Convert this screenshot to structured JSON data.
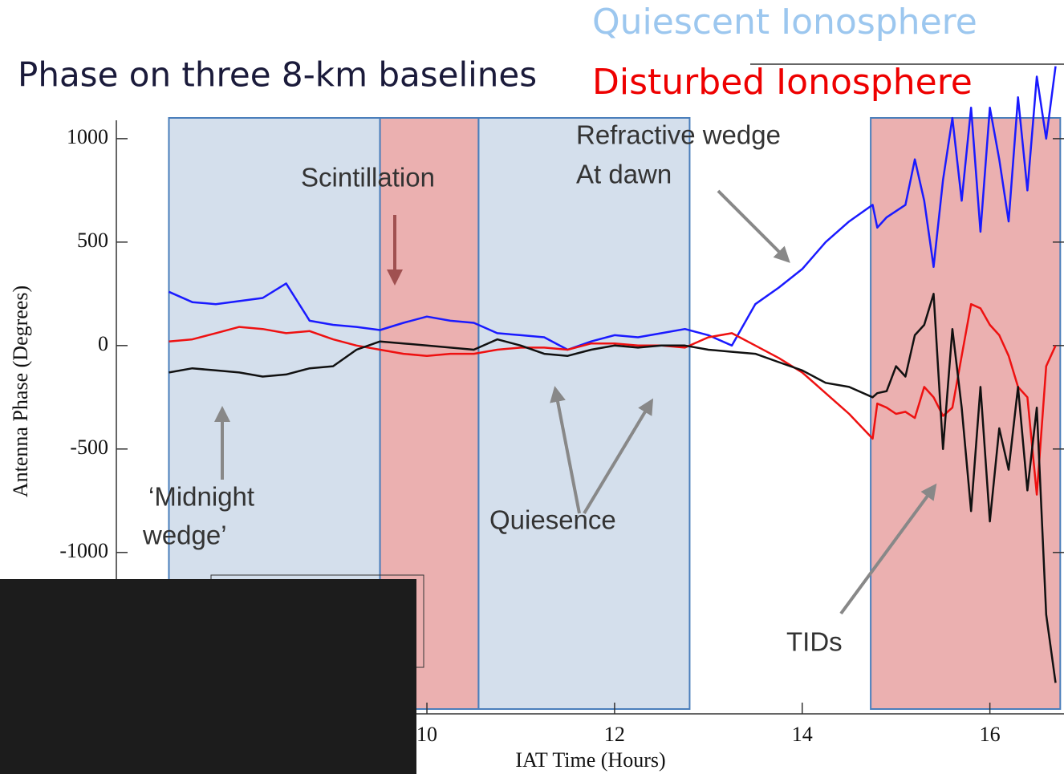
{
  "title": "Phase on three 8-km baselines",
  "chart_data": {
    "type": "line",
    "x_label": "IAT Time (Hours)",
    "y_label": "Antenna Phase (Degrees)",
    "xlim": [
      6.69,
      16.79
    ],
    "ylim": [
      -1780,
      1360
    ],
    "xticks": [
      10,
      12,
      14,
      16
    ],
    "yticks": [
      1000,
      500,
      0,
      -500,
      -1000
    ],
    "x": [
      7.25,
      7.5,
      7.75,
      8.0,
      8.25,
      8.5,
      8.75,
      9.0,
      9.25,
      9.5,
      9.75,
      10.0,
      10.25,
      10.5,
      10.75,
      11.0,
      11.25,
      11.5,
      11.75,
      12.0,
      12.25,
      12.5,
      12.75,
      13.0,
      13.25,
      13.5,
      13.75,
      14.0,
      14.25,
      14.5,
      14.75,
      14.8,
      14.9,
      15.0,
      15.1,
      15.2,
      15.3,
      15.4,
      15.5,
      15.6,
      15.7,
      15.8,
      15.9,
      16.0,
      16.1,
      16.2,
      16.3,
      16.4,
      16.5,
      16.6,
      16.7
    ],
    "series": [
      {
        "color": "#1a1aff",
        "values": [
          260,
          210,
          200,
          215,
          230,
          300,
          120,
          100,
          90,
          75,
          110,
          140,
          120,
          110,
          60,
          50,
          40,
          -20,
          20,
          50,
          40,
          60,
          80,
          50,
          0,
          200,
          280,
          370,
          500,
          600,
          680,
          570,
          620,
          650,
          680,
          900,
          700,
          380,
          800,
          1100,
          700,
          1150,
          550,
          1150,
          900,
          600,
          1200,
          750,
          1300,
          1000,
          1350
        ]
      },
      {
        "color": "#ee1111",
        "values": [
          20,
          30,
          60,
          90,
          80,
          60,
          70,
          30,
          0,
          -20,
          -40,
          -50,
          -40,
          -40,
          -20,
          -10,
          -10,
          -20,
          10,
          10,
          0,
          0,
          -10,
          40,
          60,
          0,
          -60,
          -130,
          -230,
          -330,
          -450,
          -280,
          -300,
          -330,
          -320,
          -350,
          -200,
          -250,
          -340,
          -300,
          -50,
          200,
          180,
          100,
          50,
          -50,
          -200,
          -250,
          -720,
          -100,
          0
        ]
      },
      {
        "color": "#111111",
        "values": [
          -130,
          -110,
          -120,
          -130,
          -150,
          -140,
          -110,
          -100,
          -20,
          20,
          10,
          0,
          -10,
          -20,
          30,
          0,
          -40,
          -50,
          -20,
          0,
          -10,
          0,
          0,
          -20,
          -30,
          -40,
          -80,
          -120,
          -180,
          -200,
          -250,
          -230,
          -220,
          -100,
          -150,
          50,
          100,
          250,
          -500,
          80,
          -300,
          -800,
          -200,
          -850,
          -400,
          -600,
          -200,
          -700,
          -300,
          -1300,
          -1630
        ]
      }
    ],
    "shading": [
      {
        "name": "Quiescent Ionosphere",
        "color": "#9cc7ef",
        "fill": "#d4dfec",
        "spans": [
          [
            7.25,
            9.5
          ],
          [
            10.55,
            12.8
          ]
        ]
      },
      {
        "name": "Disturbed Ionosphere",
        "color": "#ee0000",
        "fill": "#ebb0b0",
        "spans": [
          [
            9.5,
            10.55
          ],
          [
            14.73,
            16.75
          ]
        ]
      }
    ],
    "annotations": [
      "Scintillation",
      "Refractive wedge",
      "At dawn",
      "‘Midnight",
      "wedge’",
      "Quiesence",
      "TIDs"
    ]
  }
}
